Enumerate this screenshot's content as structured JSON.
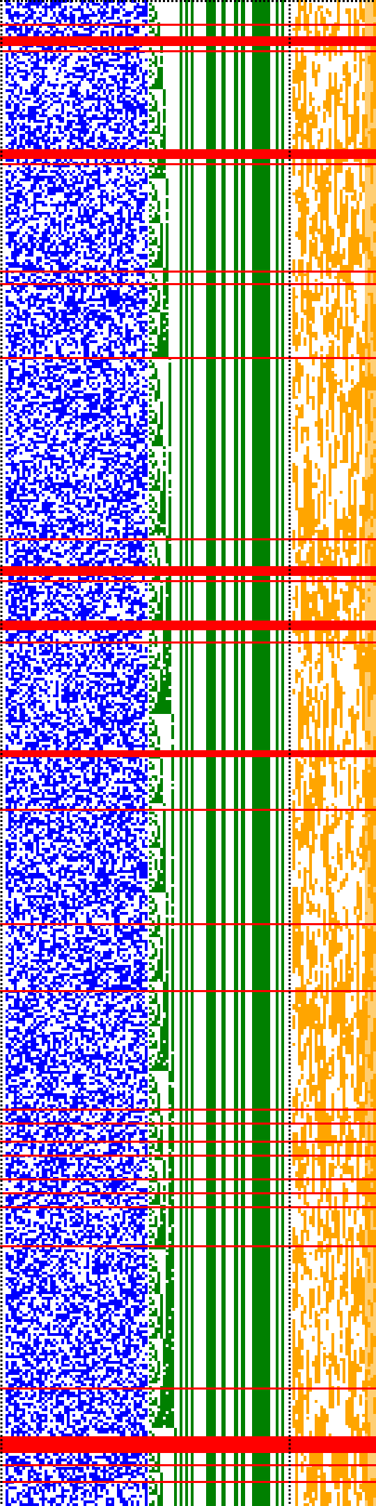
{
  "visualization": {
    "kind": "bit-pattern",
    "colors": {
      "background": "#ffffff",
      "blue_region": "#0000ff",
      "green_region": "#008000",
      "orange_region": "#ffa500",
      "separator": "#000000",
      "highlight_rows": "#ff0000"
    },
    "regions": [
      {
        "name": "blue-random-bits",
        "color_key": "blue_region"
      },
      {
        "name": "green-counter-bars",
        "color_key": "green_region"
      },
      {
        "name": "orange-sparse-bits",
        "color_key": "orange_region"
      }
    ],
    "separators": [
      {
        "name": "left-dotted-edge",
        "style": "dotted"
      },
      {
        "name": "middle-dotted-divider",
        "style": "dotted"
      }
    ]
  }
}
